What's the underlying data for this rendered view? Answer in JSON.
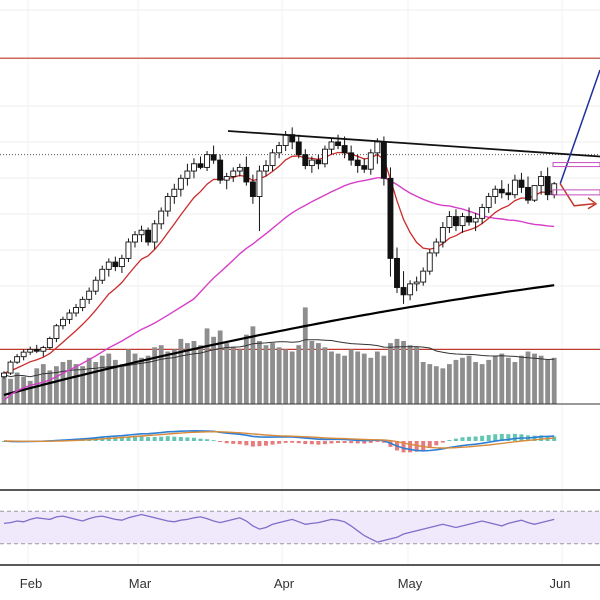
{
  "chart_data": [
    {
      "type": "candlestick",
      "title": "",
      "x_labels": [
        "Feb",
        "Mar",
        "Apr",
        "May",
        "Jun"
      ],
      "ohlc": [
        [
          170,
          176,
          168,
          174
        ],
        [
          174,
          188,
          172,
          186
        ],
        [
          186,
          195,
          184,
          192
        ],
        [
          192,
          200,
          188,
          197
        ],
        [
          197,
          203,
          194,
          200
        ],
        [
          200,
          205,
          196,
          198
        ],
        [
          198,
          204,
          192,
          202
        ],
        [
          202,
          214,
          200,
          212
        ],
        [
          212,
          228,
          208,
          226
        ],
        [
          226,
          236,
          222,
          233
        ],
        [
          233,
          244,
          228,
          240
        ],
        [
          240,
          250,
          236,
          246
        ],
        [
          246,
          258,
          242,
          255
        ],
        [
          255,
          268,
          250,
          264
        ],
        [
          264,
          280,
          260,
          276
        ],
        [
          276,
          292,
          272,
          288
        ],
        [
          288,
          300,
          280,
          296
        ],
        [
          296,
          302,
          286,
          291
        ],
        [
          291,
          304,
          284,
          300
        ],
        [
          300,
          322,
          296,
          318
        ],
        [
          318,
          330,
          312,
          326
        ],
        [
          326,
          336,
          318,
          331
        ],
        [
          331,
          334,
          314,
          318
        ],
        [
          318,
          342,
          310,
          338
        ],
        [
          338,
          356,
          332,
          352
        ],
        [
          352,
          372,
          346,
          368
        ],
        [
          368,
          382,
          360,
          376
        ],
        [
          376,
          392,
          368,
          388
        ],
        [
          388,
          404,
          380,
          396
        ],
        [
          396,
          410,
          388,
          404
        ],
        [
          404,
          412,
          398,
          400
        ],
        [
          400,
          418,
          396,
          414
        ],
        [
          414,
          424,
          404,
          408
        ],
        [
          408,
          414,
          382,
          386
        ],
        [
          386,
          394,
          376,
          390
        ],
        [
          390,
          400,
          384,
          396
        ],
        [
          396,
          404,
          390,
          400
        ],
        [
          400,
          412,
          380,
          384
        ],
        [
          384,
          392,
          360,
          368
        ],
        [
          368,
          402,
          330,
          396
        ],
        [
          396,
          408,
          390,
          402
        ],
        [
          402,
          420,
          396,
          416
        ],
        [
          416,
          428,
          410,
          424
        ],
        [
          424,
          440,
          418,
          436
        ],
        [
          436,
          444,
          420,
          428
        ],
        [
          428,
          436,
          410,
          414
        ],
        [
          414,
          420,
          398,
          402
        ],
        [
          402,
          412,
          394,
          408
        ],
        [
          408,
          414,
          398,
          404
        ],
        [
          404,
          424,
          400,
          420
        ],
        [
          420,
          432,
          414,
          428
        ],
        [
          428,
          436,
          420,
          424
        ],
        [
          424,
          434,
          410,
          416
        ],
        [
          416,
          424,
          402,
          408
        ],
        [
          408,
          414,
          394,
          402
        ],
        [
          402,
          410,
          394,
          398
        ],
        [
          398,
          420,
          392,
          416
        ],
        [
          416,
          432,
          404,
          428
        ],
        [
          428,
          434,
          380,
          388
        ],
        [
          388,
          400,
          280,
          300
        ],
        [
          300,
          312,
          262,
          268
        ],
        [
          268,
          286,
          250,
          260
        ],
        [
          260,
          276,
          254,
          272
        ],
        [
          272,
          280,
          264,
          274
        ],
        [
          274,
          290,
          270,
          286
        ],
        [
          286,
          310,
          282,
          306
        ],
        [
          306,
          322,
          302,
          318
        ],
        [
          318,
          340,
          312,
          334
        ],
        [
          334,
          352,
          328,
          346
        ],
        [
          346,
          354,
          330,
          336
        ],
        [
          336,
          350,
          328,
          346
        ],
        [
          346,
          356,
          336,
          340
        ],
        [
          340,
          350,
          330,
          344
        ],
        [
          344,
          360,
          338,
          356
        ],
        [
          356,
          372,
          350,
          368
        ],
        [
          368,
          380,
          360,
          376
        ],
        [
          376,
          386,
          366,
          372
        ],
        [
          372,
          382,
          364,
          370
        ],
        [
          370,
          392,
          366,
          386
        ],
        [
          386,
          394,
          372,
          378
        ],
        [
          378,
          390,
          360,
          364
        ],
        [
          364,
          380,
          362,
          380
        ],
        [
          380,
          396,
          370,
          390
        ],
        [
          390,
          400,
          364,
          370
        ],
        [
          370,
          384,
          366,
          382
        ]
      ],
      "overlays": [
        {
          "name": "EMA short",
          "color": "#cc2b2b"
        },
        {
          "name": "SMA medium",
          "color": "#d63fc8"
        },
        {
          "name": "SMA long",
          "color": "#000000"
        }
      ],
      "resistance_levels": [
        520,
        200
      ],
      "trendline": {
        "from": 440,
        "to": 412
      },
      "volume": [
        28,
        24,
        30,
        26,
        22,
        34,
        38,
        32,
        36,
        40,
        42,
        38,
        36,
        44,
        40,
        46,
        48,
        42,
        38,
        52,
        48,
        44,
        46,
        54,
        56,
        50,
        52,
        62,
        58,
        60,
        56,
        72,
        64,
        70,
        58,
        54,
        52,
        66,
        74,
        60,
        56,
        58,
        54,
        52,
        50,
        56,
        92,
        60,
        58,
        54,
        50,
        48,
        46,
        52,
        50,
        48,
        44,
        50,
        46,
        58,
        62,
        60,
        56,
        54,
        40,
        38,
        36,
        34,
        38,
        42,
        44,
        46,
        40,
        38,
        42,
        46,
        48,
        44,
        40,
        46,
        50,
        48,
        46,
        42,
        44
      ],
      "volume_ma_color": "#333333",
      "macd": {
        "line_color": "#2f7fd6",
        "signal_color": "#d88b3a",
        "hist_up_color": "#2fb39a",
        "hist_down_color": "#e05050"
      },
      "rsi": {
        "line_color": "#7f6fc9",
        "band_fill": "#efe9fb",
        "upper": 70,
        "lower": 30,
        "values": [
          55,
          56,
          58,
          57,
          60,
          62,
          61,
          60,
          63,
          64,
          62,
          60,
          58,
          61,
          63,
          64,
          62,
          60,
          59,
          62,
          64,
          66,
          64,
          62,
          60,
          58,
          57,
          59,
          60,
          62,
          63,
          61,
          58,
          56,
          58,
          60,
          62,
          58,
          52,
          48,
          50,
          54,
          56,
          58,
          60,
          57,
          54,
          55,
          56,
          58,
          60,
          59,
          57,
          52,
          46,
          40,
          36,
          32,
          34,
          36,
          38,
          42,
          44,
          46,
          48,
          50,
          52,
          54,
          52,
          50,
          52,
          54,
          56,
          58,
          56,
          54,
          52,
          55,
          57,
          59,
          56,
          54,
          56,
          58,
          60
        ]
      }
    }
  ]
}
